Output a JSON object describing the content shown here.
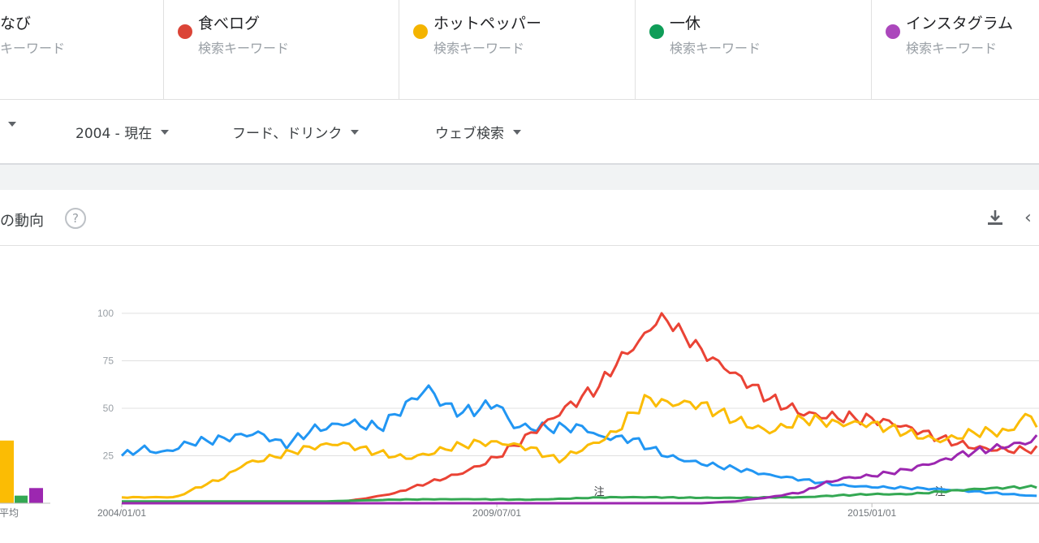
{
  "keywords": [
    {
      "name": "なび",
      "sub": "キーワード",
      "color": "#4285f4"
    },
    {
      "name": "食べログ",
      "sub": "検索キーワード",
      "color": "#db4437"
    },
    {
      "name": "ホットペッパー",
      "sub": "検索キーワード",
      "color": "#f4b400"
    },
    {
      "name": "一休",
      "sub": "検索キーワード",
      "color": "#0f9d58"
    },
    {
      "name": "インスタグラム",
      "sub": "検索キーワード",
      "color": "#ab47bc"
    }
  ],
  "filters": {
    "period": "2004 - 現在",
    "category": "フード、ドリンク",
    "search_type": "ウェブ検索"
  },
  "section": {
    "title": "の動向",
    "help_symbol": "?",
    "download_icon": "download-icon",
    "share_icon": "share-icon"
  },
  "average": {
    "label": "平均"
  },
  "chart_data": {
    "type": "line",
    "y_ticks": [
      25,
      50,
      75,
      100
    ],
    "ylim": [
      0,
      100
    ],
    "x_ticks": [
      "2004/01/01",
      "2009/07/01",
      "2015/01/01"
    ],
    "x_range": [
      "2004/01/01",
      "2017/06/01"
    ],
    "note_markers": [
      "注",
      "注"
    ],
    "averages": [
      {
        "series": "ホットペッパー",
        "value": 33,
        "color": "#fbbc04"
      },
      {
        "series": "一休",
        "value": 4,
        "color": "#34a853"
      },
      {
        "series": "インスタグラム",
        "value": 8,
        "color": "#9c27b0"
      }
    ],
    "series": [
      {
        "name": "なび",
        "color": "#2196f3",
        "points": [
          [
            2004.0,
            25
          ],
          [
            2004.3,
            30
          ],
          [
            2004.6,
            28
          ],
          [
            2005.0,
            33
          ],
          [
            2005.5,
            33
          ],
          [
            2006.0,
            35
          ],
          [
            2006.4,
            30
          ],
          [
            2006.8,
            40
          ],
          [
            2007.3,
            45
          ],
          [
            2007.8,
            40
          ],
          [
            2008.1,
            48
          ],
          [
            2008.5,
            58
          ],
          [
            2008.7,
            50
          ],
          [
            2009.0,
            47
          ],
          [
            2009.5,
            55
          ],
          [
            2009.75,
            43
          ],
          [
            2010.3,
            40
          ],
          [
            2010.8,
            38
          ],
          [
            2011.0,
            33
          ],
          [
            2011.5,
            33
          ],
          [
            2012.0,
            26
          ],
          [
            2012.5,
            22
          ],
          [
            2013.0,
            18
          ],
          [
            2013.5,
            14
          ],
          [
            2014.0,
            12
          ],
          [
            2014.5,
            10
          ],
          [
            2015.0,
            9
          ],
          [
            2015.5,
            8
          ],
          [
            2016.0,
            7
          ],
          [
            2016.5,
            6
          ],
          [
            2017.0,
            5
          ],
          [
            2017.4,
            4
          ]
        ]
      },
      {
        "name": "食べログ",
        "color": "#ea4335",
        "points": [
          [
            2004.0,
            0
          ],
          [
            2007.0,
            0
          ],
          [
            2007.5,
            2
          ],
          [
            2008.0,
            5
          ],
          [
            2008.5,
            11
          ],
          [
            2009.0,
            17
          ],
          [
            2009.5,
            25
          ],
          [
            2009.9,
            33
          ],
          [
            2010.3,
            42
          ],
          [
            2010.7,
            53
          ],
          [
            2011.0,
            62
          ],
          [
            2011.3,
            78
          ],
          [
            2011.6,
            88
          ],
          [
            2011.8,
            97
          ],
          [
            2011.95,
            100
          ],
          [
            2012.2,
            90
          ],
          [
            2012.6,
            75
          ],
          [
            2013.0,
            65
          ],
          [
            2013.5,
            55
          ],
          [
            2014.0,
            50
          ],
          [
            2014.5,
            47
          ],
          [
            2015.0,
            43
          ],
          [
            2015.5,
            38
          ],
          [
            2016.0,
            34
          ],
          [
            2016.5,
            31
          ],
          [
            2017.0,
            29
          ],
          [
            2017.4,
            28
          ]
        ]
      },
      {
        "name": "ホットペッパー",
        "color": "#fbbc04",
        "points": [
          [
            2004.0,
            3
          ],
          [
            2004.8,
            3
          ],
          [
            2005.1,
            8
          ],
          [
            2005.5,
            14
          ],
          [
            2005.8,
            22
          ],
          [
            2006.2,
            25
          ],
          [
            2006.7,
            28
          ],
          [
            2007.2,
            30
          ],
          [
            2007.7,
            27
          ],
          [
            2008.2,
            25
          ],
          [
            2008.8,
            30
          ],
          [
            2009.2,
            31
          ],
          [
            2009.6,
            30
          ],
          [
            2010.0,
            28
          ],
          [
            2010.4,
            23
          ],
          [
            2010.8,
            31
          ],
          [
            2011.2,
            38
          ],
          [
            2011.5,
            48
          ],
          [
            2011.7,
            54
          ],
          [
            2012.0,
            50
          ],
          [
            2012.5,
            50
          ],
          [
            2013.0,
            45
          ],
          [
            2013.5,
            40
          ],
          [
            2014.0,
            45
          ],
          [
            2014.5,
            40
          ],
          [
            2015.0,
            40
          ],
          [
            2015.5,
            38
          ],
          [
            2016.0,
            35
          ],
          [
            2016.5,
            38
          ],
          [
            2017.0,
            36
          ],
          [
            2017.3,
            45
          ],
          [
            2017.45,
            38
          ]
        ]
      },
      {
        "name": "一休",
        "color": "#34a853",
        "points": [
          [
            2004.0,
            1
          ],
          [
            2005.0,
            1
          ],
          [
            2007.0,
            1
          ],
          [
            2008.0,
            2
          ],
          [
            2010.0,
            2
          ],
          [
            2011.0,
            3
          ],
          [
            2012.0,
            3
          ],
          [
            2013.0,
            3
          ],
          [
            2014.0,
            3
          ],
          [
            2014.5,
            4
          ],
          [
            2015.0,
            5
          ],
          [
            2015.5,
            5
          ],
          [
            2016.0,
            6
          ],
          [
            2016.5,
            7
          ],
          [
            2017.0,
            8
          ],
          [
            2017.45,
            9
          ]
        ]
      },
      {
        "name": "インスタグラム",
        "color": "#9c27b0",
        "points": [
          [
            2004.0,
            0
          ],
          [
            2012.5,
            0
          ],
          [
            2013.0,
            1
          ],
          [
            2013.5,
            3
          ],
          [
            2014.0,
            6
          ],
          [
            2014.3,
            11
          ],
          [
            2014.6,
            14
          ],
          [
            2015.0,
            15
          ],
          [
            2015.5,
            17
          ],
          [
            2016.0,
            21
          ],
          [
            2016.3,
            25
          ],
          [
            2016.7,
            29
          ],
          [
            2017.0,
            32
          ],
          [
            2017.3,
            34
          ],
          [
            2017.45,
            36
          ]
        ]
      }
    ]
  }
}
